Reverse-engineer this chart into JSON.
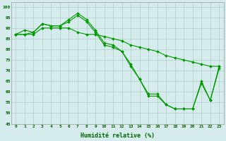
{
  "xlabel": "Humidité relative (%)",
  "xlim": [
    -0.5,
    23.5
  ],
  "ylim": [
    45,
    102
  ],
  "yticks": [
    45,
    50,
    55,
    60,
    65,
    70,
    75,
    80,
    85,
    90,
    95,
    100
  ],
  "xticks": [
    0,
    1,
    2,
    3,
    4,
    5,
    6,
    7,
    8,
    9,
    10,
    11,
    12,
    13,
    14,
    15,
    16,
    17,
    18,
    19,
    20,
    21,
    22,
    23
  ],
  "background_color": "#d6ecec",
  "grid_color": "#b0cccc",
  "line_color": "#009900",
  "series": [
    {
      "x": [
        0,
        1,
        2,
        3,
        4,
        5,
        6,
        7,
        8,
        9,
        10,
        11,
        12,
        13,
        14,
        15,
        16,
        17,
        18,
        19,
        20,
        21,
        22,
        23
      ],
      "y": [
        87,
        89,
        88,
        92,
        91,
        91,
        94,
        97,
        94,
        89,
        83,
        82,
        79,
        73,
        66,
        59,
        59,
        54,
        52,
        52,
        52,
        65,
        56,
        72
      ]
    },
    {
      "x": [
        0,
        1,
        2,
        3,
        4,
        5,
        6,
        7,
        8,
        9,
        10,
        11,
        12,
        13,
        14,
        15,
        16,
        17,
        18,
        19,
        20,
        21,
        22,
        23
      ],
      "y": [
        87,
        87,
        88,
        92,
        91,
        91,
        93,
        96,
        93,
        88,
        82,
        81,
        79,
        72,
        66,
        58,
        58,
        54,
        52,
        52,
        52,
        64,
        56,
        71
      ]
    },
    {
      "x": [
        0,
        1,
        2,
        3,
        4,
        5,
        6,
        7,
        8,
        9,
        10,
        11,
        12,
        13,
        14,
        15,
        16,
        17,
        18,
        19,
        20,
        21,
        22,
        23
      ],
      "y": [
        87,
        87,
        87,
        90,
        90,
        90,
        90,
        88,
        87,
        87,
        86,
        85,
        84,
        82,
        81,
        80,
        79,
        77,
        76,
        75,
        74,
        73,
        72,
        72
      ]
    }
  ]
}
